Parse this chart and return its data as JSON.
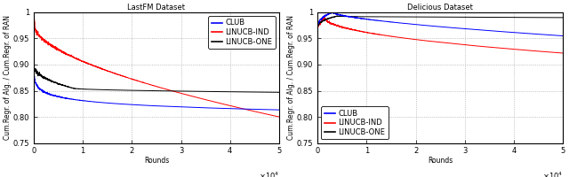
{
  "left_title": "LastFM Dataset",
  "right_title": "Delicious Dataset",
  "xlabel": "Rounds",
  "ylabel": "Cum.Regr. of Alg. / Cum.Regr. of RAN",
  "xlim": [
    0,
    50000
  ],
  "ylim": [
    0.75,
    1.0
  ],
  "yticks": [
    0.75,
    0.8,
    0.85,
    0.9,
    0.95,
    1.0
  ],
  "xticks": [
    0,
    10000,
    20000,
    30000,
    40000,
    50000
  ],
  "xtick_labels": [
    "0",
    "1",
    "2",
    "3",
    "4",
    "5"
  ],
  "legend_labels_left": [
    "CLUB",
    "LINUCB-IND",
    "LINUCB-ONE"
  ],
  "legend_labels_right": [
    "CLUB",
    "LINUCB-IND",
    "LINUCB-ONE"
  ],
  "colors": [
    "#0000ff",
    "#ff0000",
    "#000000"
  ],
  "background_color": "#ffffff",
  "title_fontsize": 6,
  "label_fontsize": 5.5,
  "tick_fontsize": 6,
  "legend_fontsize": 6
}
